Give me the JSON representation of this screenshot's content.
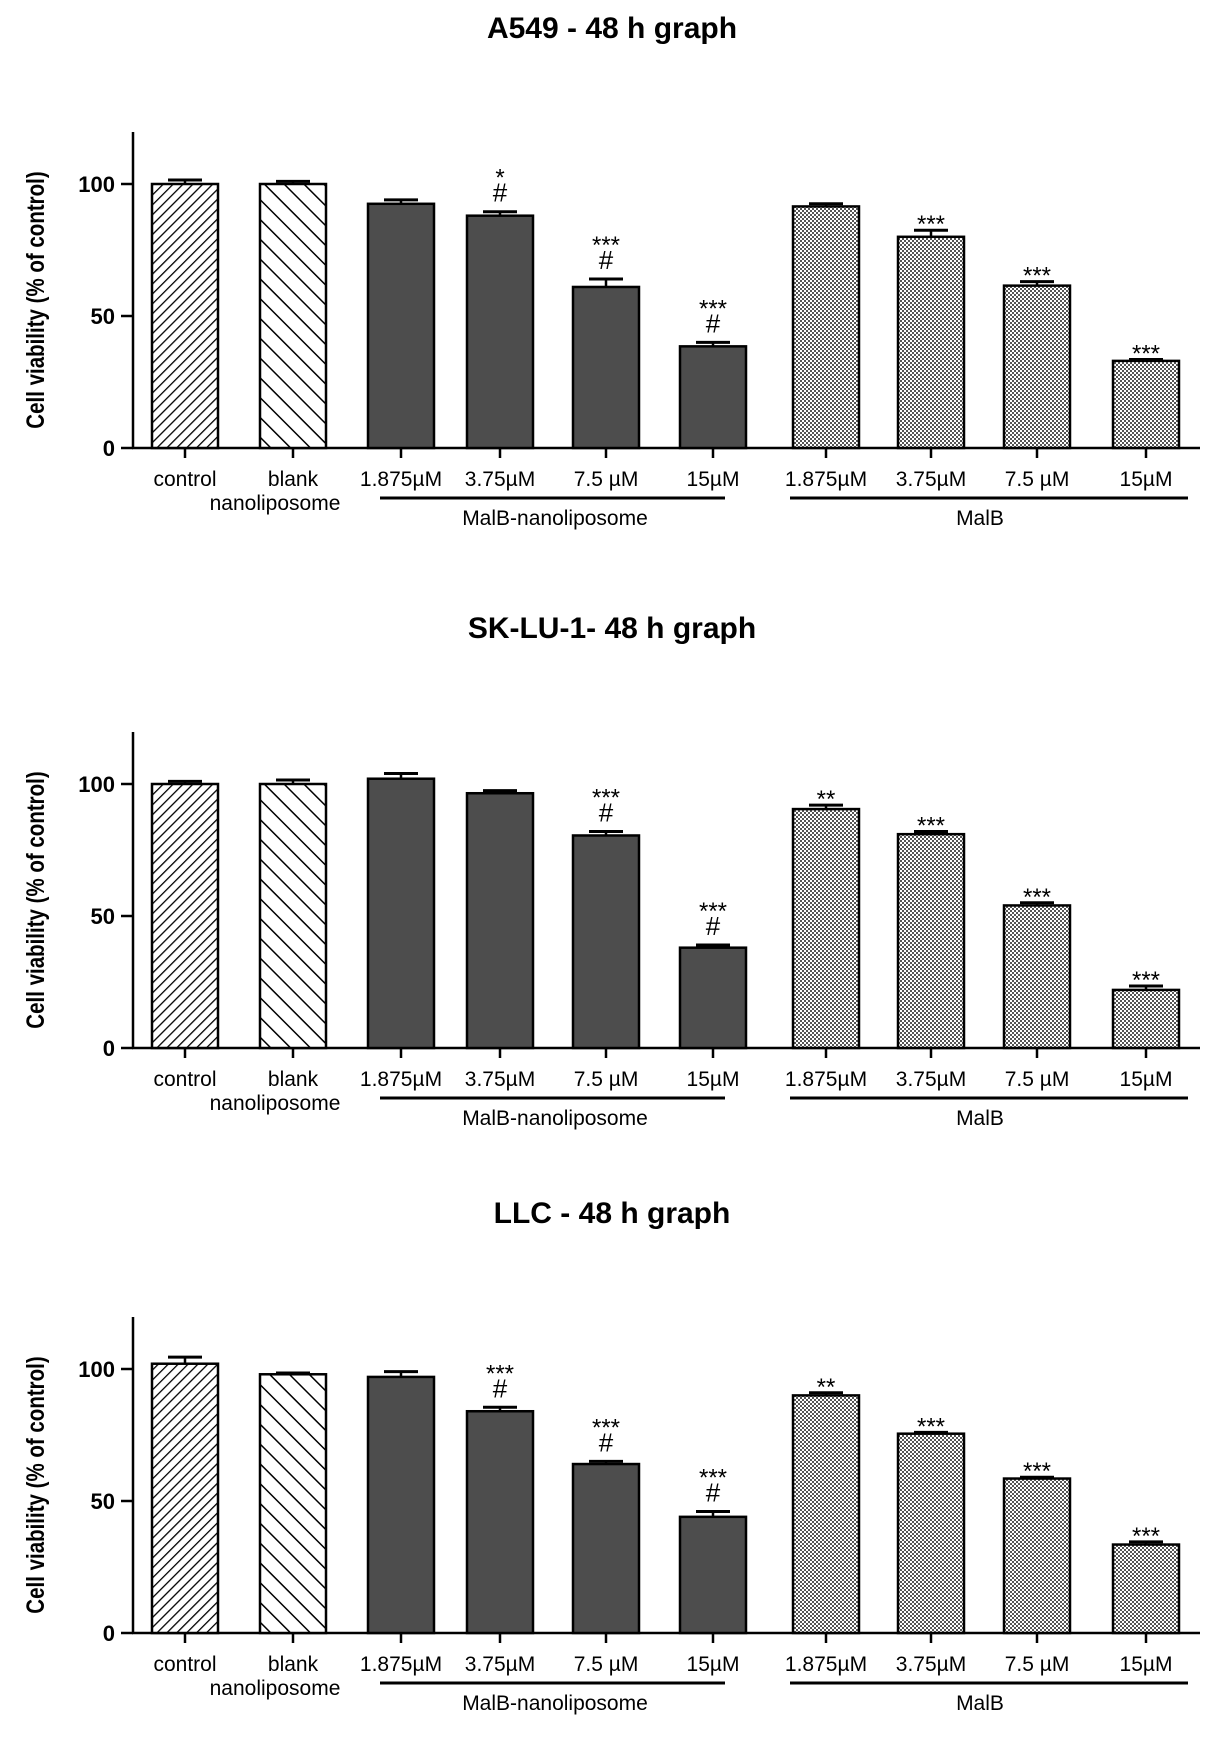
{
  "figure": {
    "category_labels": [
      "control",
      "blank",
      "1.875µM",
      "3.75µM",
      "7.5 µM",
      "15µM",
      "1.875µM",
      "3.75µM",
      "7.5 µM",
      "15µM"
    ],
    "blank_second_line": "nanoliposome",
    "group_labels": [
      "MalB-nanoliposome",
      "MalB"
    ],
    "colors": {
      "axis": "#000000",
      "dark_bar": "#4d4d4d",
      "text": "#000000"
    }
  },
  "chart_data": [
    {
      "type": "bar",
      "title": "A549 - 48 h graph",
      "ylabel": "Cell viability (% of control)",
      "xlabel": "",
      "ylim": [
        0,
        120
      ],
      "yticks": [
        "0",
        "50",
        "100"
      ],
      "categories": [
        "control",
        "blank nanoliposome",
        "MalB-nanoliposome 1.875µM",
        "MalB-nanoliposome 3.75µM",
        "MalB-nanoliposome 7.5 µM",
        "MalB-nanoliposome 15µM",
        "MalB 1.875µM",
        "MalB 3.75µM",
        "MalB 7.5 µM",
        "MalB 15µM"
      ],
      "values": [
        100,
        100,
        92.5,
        88,
        61,
        38.5,
        91.5,
        80,
        61.5,
        33
      ],
      "errors": [
        1.5,
        1,
        1.5,
        1.5,
        3,
        1.5,
        1,
        2.5,
        1.5,
        0.5
      ],
      "annotations": [
        {
          "bar": 3,
          "lines": [
            "*",
            "#"
          ]
        },
        {
          "bar": 4,
          "lines": [
            "***",
            "#"
          ]
        },
        {
          "bar": 5,
          "lines": [
            "***",
            "#"
          ]
        },
        {
          "bar": 7,
          "lines": [
            "***"
          ]
        },
        {
          "bar": 8,
          "lines": [
            "***"
          ]
        },
        {
          "bar": 9,
          "lines": [
            "***"
          ]
        }
      ]
    },
    {
      "type": "bar",
      "title": "SK-LU-1- 48 h graph",
      "ylabel": "Cell viability (% of control)",
      "xlabel": "",
      "ylim": [
        0,
        120
      ],
      "yticks": [
        "0",
        "50",
        "100"
      ],
      "categories": [
        "control",
        "blank nanoliposome",
        "MalB-nanoliposome 1.875µM",
        "MalB-nanoliposome 3.75µM",
        "MalB-nanoliposome 7.5 µM",
        "MalB-nanoliposome 15µM",
        "MalB 1.875µM",
        "MalB 3.75µM",
        "MalB 7.5 µM",
        "MalB 15µM"
      ],
      "values": [
        100,
        100,
        102,
        96.5,
        80.5,
        38,
        90.5,
        81,
        54,
        22
      ],
      "errors": [
        1,
        1.5,
        2,
        1,
        1.5,
        1,
        1.5,
        1,
        1,
        1.5
      ],
      "annotations": [
        {
          "bar": 4,
          "lines": [
            "***",
            "#"
          ]
        },
        {
          "bar": 5,
          "lines": [
            "***",
            "#"
          ]
        },
        {
          "bar": 6,
          "lines": [
            "**"
          ]
        },
        {
          "bar": 7,
          "lines": [
            "***"
          ]
        },
        {
          "bar": 8,
          "lines": [
            "***"
          ]
        },
        {
          "bar": 9,
          "lines": [
            "***"
          ]
        }
      ]
    },
    {
      "type": "bar",
      "title": "LLC - 48 h graph",
      "ylabel": "Cell viability (% of control)",
      "xlabel": "",
      "ylim": [
        0,
        120
      ],
      "yticks": [
        "0",
        "50",
        "100"
      ],
      "categories": [
        "control",
        "blank nanoliposome",
        "MalB-nanoliposome 1.875µM",
        "MalB-nanoliposome 3.75µM",
        "MalB-nanoliposome 7.5 µM",
        "MalB-nanoliposome 15µM",
        "MalB 1.875µM",
        "MalB 3.75µM",
        "MalB 7.5 µM",
        "MalB 15µM"
      ],
      "values": [
        102,
        98,
        97,
        84,
        64,
        44,
        90,
        75.5,
        58.5,
        33.5
      ],
      "errors": [
        2.5,
        0.5,
        2,
        1.5,
        1,
        2,
        1,
        0.5,
        0.5,
        1
      ],
      "annotations": [
        {
          "bar": 3,
          "lines": [
            "***",
            "#"
          ]
        },
        {
          "bar": 4,
          "lines": [
            "***",
            "#"
          ]
        },
        {
          "bar": 5,
          "lines": [
            "***",
            "#"
          ]
        },
        {
          "bar": 6,
          "lines": [
            "**"
          ]
        },
        {
          "bar": 7,
          "lines": [
            "***"
          ]
        },
        {
          "bar": 8,
          "lines": [
            "***"
          ]
        },
        {
          "bar": 9,
          "lines": [
            "***"
          ]
        }
      ]
    }
  ]
}
